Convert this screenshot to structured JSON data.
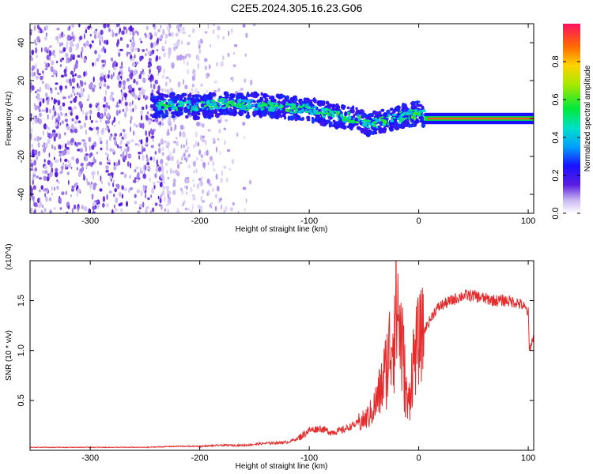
{
  "title": "C2E5.2024.305.16.23.G06",
  "chart_data": [
    {
      "type": "heatmap",
      "xlabel": "Height of straight line (km)",
      "ylabel": "Frequency (Hz)",
      "xlim": [
        -355,
        105
      ],
      "ylim": [
        -50,
        50
      ],
      "x_ticks": [
        "-300",
        "-200",
        "-100",
        "0",
        "100"
      ],
      "x_tick_values": [
        -300,
        -200,
        -100,
        0,
        100
      ],
      "y_ticks": [
        "40",
        "20",
        "0",
        "-20",
        "-40"
      ],
      "y_tick_values": [
        40,
        20,
        0,
        -20,
        -40
      ],
      "colorbar": {
        "label": "Normalized spectral amplitude",
        "ticks": [
          "0.0",
          "0.2",
          "0.4",
          "0.6",
          "0.8"
        ],
        "tick_values": [
          0.0,
          0.2,
          0.4,
          0.6,
          0.8
        ],
        "range": [
          0,
          1
        ]
      },
      "signal_track": [
        {
          "x": -240,
          "freq": 7
        },
        {
          "x": -220,
          "freq": 7
        },
        {
          "x": -200,
          "freq": 6
        },
        {
          "x": -180,
          "freq": 8
        },
        {
          "x": -160,
          "freq": 7
        },
        {
          "x": -140,
          "freq": 7
        },
        {
          "x": -120,
          "freq": 6
        },
        {
          "x": -100,
          "freq": 5
        },
        {
          "x": -80,
          "freq": 2
        },
        {
          "x": -60,
          "freq": 0
        },
        {
          "x": -45,
          "freq": -3
        },
        {
          "x": -35,
          "freq": -2
        },
        {
          "x": -25,
          "freq": 0
        },
        {
          "x": -15,
          "freq": 1
        },
        {
          "x": -5,
          "freq": 2
        },
        {
          "x": 0,
          "freq": 3
        },
        {
          "x": 10,
          "freq": 0
        },
        {
          "x": 50,
          "freq": 0
        },
        {
          "x": 105,
          "freq": 0
        }
      ]
    },
    {
      "type": "line",
      "xlabel": "Height of straight line (km)",
      "ylabel": "SNR (10 * v/v)",
      "multiplier": "(x10^4)",
      "xlim": [
        -355,
        105
      ],
      "ylim": [
        0,
        1.9
      ],
      "x_ticks": [
        "-300",
        "-200",
        "-100",
        "0",
        "100"
      ],
      "x_tick_values": [
        -300,
        -200,
        -100,
        0,
        100
      ],
      "y_ticks": [
        "1.5",
        "1.0",
        "0.5"
      ],
      "y_tick_values": [
        1.5,
        1.0,
        0.5
      ],
      "series": [
        {
          "color": "#e52b2b",
          "x": [
            -355,
            -300,
            -250,
            -220,
            -200,
            -180,
            -160,
            -140,
            -120,
            -110,
            -100,
            -90,
            -80,
            -70,
            -60,
            -50,
            -45,
            -40,
            -35,
            -30,
            -25,
            -20,
            -15,
            -10,
            -5,
            0,
            5,
            10,
            15,
            20,
            30,
            40,
            50,
            60,
            70,
            80,
            90,
            95,
            100,
            101,
            105
          ],
          "values": [
            0.03,
            0.03,
            0.03,
            0.04,
            0.04,
            0.05,
            0.05,
            0.07,
            0.08,
            0.12,
            0.2,
            0.22,
            0.18,
            0.2,
            0.25,
            0.3,
            0.35,
            0.45,
            0.6,
            0.8,
            1.1,
            1.5,
            1.0,
            0.4,
            0.9,
            1.1,
            1.2,
            1.3,
            1.4,
            1.45,
            1.5,
            1.55,
            1.55,
            1.52,
            1.5,
            1.5,
            1.48,
            1.45,
            1.38,
            1.0,
            1.15
          ]
        }
      ]
    }
  ]
}
